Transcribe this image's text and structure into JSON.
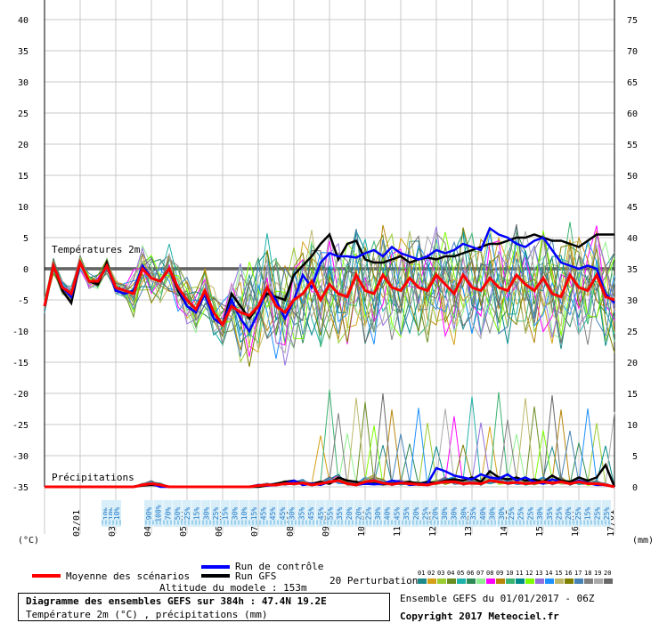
{
  "chart_data": {
    "type": "line",
    "x": [
      "02/01",
      "03/01",
      "04/01",
      "05/01",
      "06/01",
      "07/01",
      "08/01",
      "09/01",
      "10/01",
      "11/01",
      "12/01",
      "13/01",
      "14/01",
      "15/01",
      "16/01",
      "17/01"
    ],
    "y_left_ticks": [
      40,
      35,
      30,
      25,
      20,
      15,
      10,
      5,
      0,
      -5,
      -10,
      -15,
      -20,
      -25,
      -30,
      -35
    ],
    "y_right_ticks": [
      75,
      70,
      65,
      60,
      55,
      50,
      45,
      40,
      35,
      30,
      25,
      20,
      15,
      10,
      5,
      0
    ],
    "y_left_unit": "(°C)",
    "y_right_unit": "(mm)",
    "ylim_temp": [
      -35,
      40
    ],
    "ylim_precip": [
      0,
      75
    ],
    "grid": true,
    "temp_label": "Températures 2m",
    "precip_label": "Précipitations",
    "series": [
      {
        "name": "Moyenne des scénarios",
        "color": "#ff0000",
        "temp": [
          -6,
          0.5,
          -3,
          -4,
          1,
          -2,
          -2,
          0.5,
          -3,
          -3.5,
          -4,
          0,
          -1.5,
          -2,
          0,
          -3,
          -5,
          -6.5,
          -3.5,
          -7,
          -9,
          -6,
          -7,
          -7.5,
          -6,
          -3,
          -6,
          -7,
          -5,
          -4,
          -2,
          -5,
          -2.5,
          -4,
          -4.5,
          -1,
          -3.5,
          -4,
          -1,
          -3,
          -3.5,
          -1.5,
          -3,
          -3.5,
          -1,
          -2.5,
          -4,
          -1,
          -3,
          -3.5,
          -1.5,
          -3,
          -3.5,
          -1,
          -2.5,
          -3.5,
          -1.5,
          -4,
          -4.5,
          -1,
          -3,
          -3.5,
          -1,
          -4.5,
          -5
        ],
        "precip": [
          0,
          0,
          0,
          0,
          0,
          0,
          0,
          0,
          0,
          0,
          0,
          0.3,
          0.5,
          0.3,
          0,
          0,
          0,
          0,
          0,
          0,
          0,
          0,
          0,
          0,
          0.2,
          0.3,
          0.3,
          0.5,
          0.5,
          0.6,
          0.3,
          0.5,
          0.8,
          1,
          0.5,
          0.3,
          0.8,
          1,
          0.6,
          0.4,
          0.6,
          0.5,
          0.4,
          0.3,
          0.6,
          0.8,
          0.8,
          0.5,
          0.6,
          0.5,
          1,
          0.8,
          0.6,
          0.7,
          0.5,
          0.6,
          0.8,
          0.6,
          0.8,
          0.5,
          0.8,
          0.5,
          0.5,
          0.3,
          0
        ]
      },
      {
        "name": "Run de contrôle",
        "color": "#0000ff",
        "temp": [
          -6,
          0.5,
          -3,
          -4.5,
          1,
          -2,
          -2,
          0.5,
          -3.5,
          -4,
          -3.5,
          0.5,
          -1.5,
          -2,
          0,
          -3,
          -6,
          -7,
          -4,
          -8,
          -9,
          -5,
          -8,
          -10,
          -7,
          -3,
          -5,
          -8,
          -5,
          -1,
          -3,
          1,
          2.5,
          2,
          2,
          1.8,
          2.5,
          3,
          2,
          3.5,
          2.5,
          2,
          1.5,
          2,
          3,
          2.5,
          3,
          4,
          3.5,
          3,
          6.5,
          5.5,
          5,
          4,
          3.5,
          4.5,
          5,
          3,
          1,
          0.5,
          0,
          0.5,
          0,
          -4,
          -5.5
        ],
        "precip": [
          0,
          0,
          0,
          0,
          0,
          0,
          0,
          0,
          0,
          0,
          0,
          0.3,
          0.5,
          0,
          0,
          0,
          0,
          0,
          0,
          0,
          0,
          0,
          0,
          0,
          0.3,
          0.2,
          0.3,
          0.5,
          1,
          0.3,
          0.5,
          0.3,
          0.8,
          1,
          0.5,
          0.3,
          0.5,
          0.4,
          0.5,
          1,
          0.8,
          0.3,
          0.4,
          0.5,
          3,
          2.5,
          1.8,
          1.5,
          1.2,
          2,
          1.5,
          1.3,
          2,
          1,
          1.5,
          0.8,
          0.5,
          1.2,
          0.8,
          0.5,
          1,
          0.6,
          0.3,
          0.3,
          0
        ]
      },
      {
        "name": "Run GFS",
        "color": "#000000",
        "temp": [
          -6,
          0.5,
          -3.5,
          -5.5,
          1,
          -2,
          -2.5,
          1,
          -3.5,
          -4,
          -3.5,
          0.5,
          -1.5,
          -2,
          0,
          -3.5,
          -6,
          -7,
          -4,
          -8,
          -9,
          -4,
          -6,
          -8,
          -6,
          -4,
          -4.5,
          -5,
          -1,
          0.5,
          2,
          4,
          5.5,
          1.5,
          4,
          4.5,
          1.5,
          1,
          1,
          1.5,
          2,
          1,
          1.5,
          1.8,
          1.5,
          2,
          2,
          2.5,
          3,
          3.5,
          4,
          4,
          4.5,
          5,
          5,
          5.5,
          5,
          4.5,
          4.5,
          4,
          3.5,
          4.5,
          5.5,
          5.5,
          5.5
        ],
        "precip": [
          0,
          0,
          0,
          0,
          0,
          0,
          0,
          0,
          0,
          0,
          0,
          0.2,
          0.3,
          0.2,
          0,
          0,
          0,
          0,
          0,
          0,
          0,
          0,
          0,
          0,
          0,
          0.2,
          0.5,
          0.8,
          1,
          0.5,
          0.5,
          0.8,
          0.5,
          1.5,
          1,
          0.8,
          0.5,
          0.5,
          0.4,
          0.5,
          0.6,
          0.8,
          0.5,
          0.8,
          0.6,
          1,
          1.2,
          1,
          1.5,
          0.8,
          2.5,
          1.5,
          1.2,
          1.5,
          1,
          1.2,
          0.8,
          1.8,
          1,
          0.8,
          1.5,
          1,
          1.5,
          3.5,
          0
        ]
      }
    ],
    "perturbation_colors": [
      "#1f8a8a",
      "#d4a017",
      "#9acd32",
      "#6b8e23",
      "#20b2aa",
      "#2e8b57",
      "#90ee90",
      "#ff00ff",
      "#b8860b",
      "#3cb371",
      "#008b8b",
      "#7fff00",
      "#9370db",
      "#1e90ff",
      "#bdb76b",
      "#808000",
      "#4682b4",
      "#808080",
      "#a9a9a9",
      "#696969"
    ],
    "precip_prob_pct": [
      "10%",
      "10%",
      "10%",
      "90%",
      "100%",
      "70%",
      "50%",
      "25%",
      "15%",
      "30%",
      "25%",
      "15%",
      "30%",
      "10%",
      "15%",
      "45%",
      "45%",
      "45%",
      "30%",
      "35%",
      "45%",
      "45%",
      "55%",
      "35%",
      "20%",
      "20%",
      "25%",
      "30%",
      "40%",
      "45%",
      "35%",
      "20%",
      "25%",
      "20%",
      "30%",
      "30%",
      "30%",
      "35%",
      "40%",
      "30%",
      "30%",
      "25%",
      "25%",
      "25%",
      "30%",
      "35%",
      "25%",
      "20%",
      "25%",
      "15%",
      "25%",
      "25%"
    ]
  },
  "legend": {
    "moyenne_label": "Moyenne des scénarios",
    "controle_label": "Run de contrôle",
    "gfs_label": "Run GFS",
    "perturbations_label": "20 Perturbations",
    "perturbation_numbers": [
      "01",
      "02",
      "03",
      "04",
      "05",
      "06",
      "07",
      "08",
      "09",
      "10",
      "11",
      "12",
      "13",
      "14",
      "15",
      "16",
      "17",
      "18",
      "19",
      "20"
    ],
    "altitude": "Altitude du modele : 153m"
  },
  "footer": {
    "title": "Diagramme des ensembles GEFS sur 384h : 47.4N 19.2E",
    "subtitle": "Température 2m (°C) , précipitations (mm)",
    "ensemble": "Ensemble GEFS du 01/01/2017 - 06Z",
    "copyright": "Copyright 2017 Meteociel.fr"
  }
}
